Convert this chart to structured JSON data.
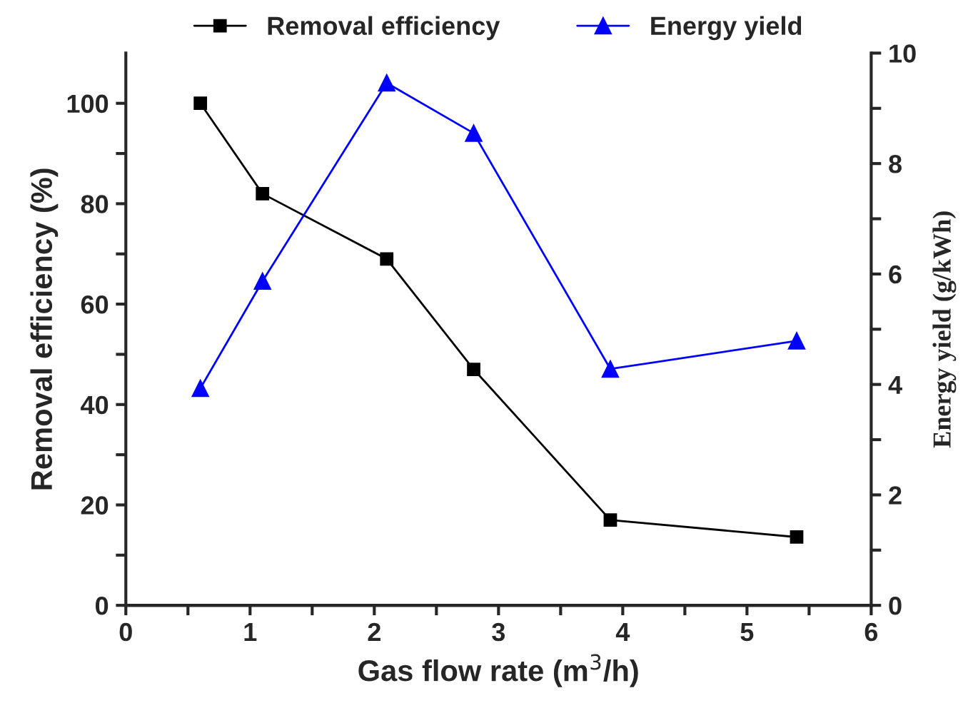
{
  "chart_data": {
    "type": "line",
    "xlabel": "Gas flow rate (m$^{3}$/h)",
    "ylabel": "Removal efficiency (%)",
    "y2label": "Energy yield (g/kWh)",
    "x": [
      0.6,
      1.1,
      2.1,
      2.8,
      3.9,
      5.4
    ],
    "series": [
      {
        "name": "Removal efficiency",
        "color": "#000000",
        "marker": "square",
        "values": [
          100,
          82,
          69,
          47,
          17,
          13.6
        ]
      },
      {
        "name": "Energy yield",
        "color": "#0000ff",
        "marker": "triangle",
        "axis": "y2",
        "values": [
          3.93,
          5.87,
          9.46,
          8.55,
          4.28,
          4.79
        ]
      }
    ],
    "xlim": [
      0,
      6
    ],
    "xticks": [
      0,
      {
        "value": 0.5,
        "label": null
      },
      1,
      {
        "value": 1.5,
        "label": null
      },
      2,
      {
        "value": 2.5,
        "label": null
      },
      3,
      {
        "value": 3.5,
        "label": null
      },
      4,
      {
        "value": 4.5,
        "label": null
      },
      5,
      {
        "value": 5.5,
        "label": null
      },
      6
    ],
    "ylim": [
      0,
      110
    ],
    "yticks": [
      0,
      {
        "value": 10,
        "label": null
      },
      20,
      {
        "value": 30,
        "label": null
      },
      40,
      {
        "value": 50,
        "label": null
      },
      60,
      {
        "value": 70,
        "label": null
      },
      80,
      {
        "value": 90,
        "label": null
      },
      100
    ],
    "y2lim": [
      0,
      10
    ],
    "y2ticks": [
      0,
      {
        "value": 1,
        "label": null
      },
      2,
      {
        "value": 3,
        "label": null
      },
      4,
      {
        "value": 5,
        "label": null
      },
      6,
      {
        "value": 7,
        "label": null
      },
      8,
      {
        "value": 9,
        "label": null
      },
      10
    ],
    "legend": "top",
    "grid": false,
    "line_style": "solid"
  }
}
